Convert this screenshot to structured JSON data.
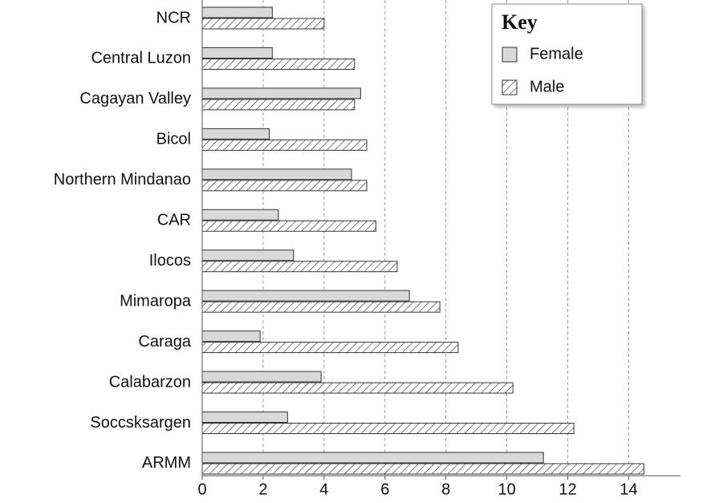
{
  "chart_data": {
    "type": "hbar",
    "categories": [
      "NCR",
      "Central Luzon",
      "Cagayan Valley",
      "Bicol",
      "Northern Mindanao",
      "CAR",
      "Ilocos",
      "Mimaropa",
      "Caraga",
      "Calabarzon",
      "Soccsksargen",
      "ARMM"
    ],
    "series": [
      {
        "name": "Female",
        "color": "#d9d9d9",
        "pattern": "solid",
        "values": [
          2.3,
          2.3,
          5.2,
          2.2,
          4.9,
          2.5,
          3.0,
          6.8,
          1.9,
          3.9,
          2.8,
          11.2
        ]
      },
      {
        "name": "Male",
        "color": "#ffffff",
        "pattern": "hatch",
        "values": [
          4.0,
          5.0,
          5.0,
          5.4,
          5.4,
          5.7,
          6.4,
          7.8,
          8.4,
          10.2,
          12.2,
          14.5
        ]
      }
    ],
    "xlim": [
      0,
      15.7
    ],
    "xticks": [
      0,
      2,
      4,
      6,
      8,
      10,
      12,
      14
    ],
    "grid": true,
    "legend_title": "Key",
    "legend_position": "upper right"
  }
}
